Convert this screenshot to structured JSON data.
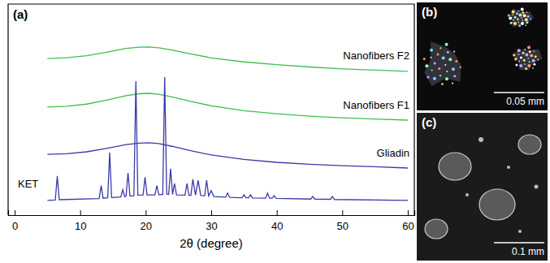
{
  "chart_data": {
    "type": "line",
    "panel_label": "(a)",
    "x_label": "2θ (degree)",
    "xlim": [
      -1,
      61
    ],
    "xticks": [
      0,
      10,
      20,
      30,
      40,
      50,
      60
    ],
    "ylim": [
      0,
      100
    ],
    "tick_labels": "x",
    "series": [
      {
        "name": "Nanofibers F2",
        "color": "#3fbf4a",
        "x": [
          5,
          8,
          11,
          14,
          17,
          19,
          20.5,
          22,
          24,
          27,
          30,
          35,
          40,
          45,
          50,
          55,
          60
        ],
        "values": [
          74.2,
          74.6,
          75.5,
          77.2,
          79,
          79.6,
          79.7,
          79.3,
          78.2,
          76.3,
          74.5,
          72.6,
          71.3,
          70.2,
          69.3,
          68.7,
          68.1
        ]
      },
      {
        "name": "Nanofibers F1",
        "color": "#3fbf4a",
        "x": [
          5,
          8,
          11,
          14,
          17,
          19,
          20.5,
          22,
          24,
          27,
          30,
          35,
          40,
          45,
          50,
          55,
          60
        ],
        "values": [
          51.2,
          51.6,
          52.6,
          54.5,
          56.6,
          57.5,
          57.7,
          57.3,
          56,
          53.8,
          51.8,
          49.5,
          48,
          46.9,
          46.1,
          45.5,
          45
        ]
      },
      {
        "name": "Gliadin",
        "color": "#3a3aaa",
        "x": [
          5,
          8,
          11,
          14,
          17,
          19,
          20.5,
          22,
          24,
          27,
          30,
          35,
          40,
          45,
          50,
          55,
          60
        ],
        "values": [
          28.8,
          29.1,
          30,
          31.6,
          33.4,
          34.1,
          34.3,
          33.9,
          32.6,
          30.4,
          28.5,
          26.4,
          25,
          24.1,
          23.4,
          22.9,
          22.3
        ]
      },
      {
        "name": "KET",
        "color": "#3a3aaa",
        "x": [
          5,
          6.2,
          6.5,
          6.8,
          12.9,
          13.2,
          13.5,
          14.2,
          14.5,
          14.8,
          16.2,
          16.5,
          16.8,
          17.0,
          17.3,
          17.6,
          18.2,
          18.5,
          18.8,
          19.6,
          19.9,
          20.2,
          21.4,
          21.7,
          22.0,
          22.6,
          22.9,
          23.2,
          23.5,
          23.8,
          24.1,
          24.4,
          24.7,
          26.0,
          26.3,
          26.6,
          26.9,
          27.2,
          27.6,
          28.0,
          28.4,
          29.0,
          29.3,
          29.6,
          30.0,
          30.4,
          32.2,
          32.5,
          32.8,
          34.7,
          35.0,
          35.3,
          35.7,
          36.0,
          36.3,
          38.3,
          38.6,
          38.9,
          39.3,
          39.6,
          39.9,
          45.2,
          45.5,
          45.8,
          48.2,
          48.5,
          48.8,
          60
        ],
        "values": [
          7,
          7.2,
          18.5,
          7.3,
          7.8,
          14,
          8,
          8.2,
          29.6,
          8.3,
          8.6,
          12,
          8.7,
          9,
          20,
          9,
          9.2,
          63.5,
          9.5,
          9.6,
          18,
          9.6,
          9.6,
          14,
          9.7,
          9.8,
          65.4,
          10,
          9.8,
          22,
          9.8,
          15,
          9.6,
          9.5,
          15,
          9.4,
          9.4,
          17,
          9.5,
          16.5,
          9.3,
          9.2,
          16.5,
          9.1,
          11.5,
          8.8,
          8.5,
          10.5,
          8.4,
          8.2,
          9.6,
          8.2,
          8.2,
          9.6,
          8.1,
          8,
          10.4,
          8,
          8,
          9.2,
          7.9,
          7.6,
          8.8,
          7.6,
          7.5,
          8.8,
          7.4,
          7
        ]
      }
    ]
  },
  "images": [
    {
      "label": "(b)",
      "scale_bar": "0.05 mm"
    },
    {
      "label": "(c)",
      "scale_bar": "0.1 mm"
    }
  ]
}
